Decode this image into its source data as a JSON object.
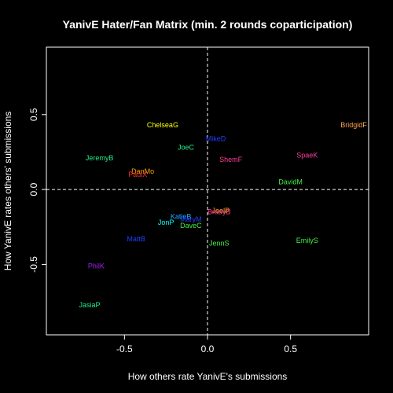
{
  "chart_data": {
    "type": "scatter",
    "title": "YanivE Hater/Fan Matrix (min. 2 rounds coparticipation)",
    "xlabel": "How others rate YanivE's submissions",
    "ylabel": "How YanivE rates others' submissions",
    "xlim": [
      -0.97,
      0.97
    ],
    "ylim": [
      -0.97,
      0.95
    ],
    "x_ticks": [
      -0.5,
      0.0,
      0.5
    ],
    "x_tick_labels": [
      "-0.5",
      "0.0",
      "0.5"
    ],
    "y_ticks": [
      -0.5,
      0.0,
      0.5
    ],
    "y_tick_labels": [
      "-0.5",
      "0.0",
      "0.5"
    ],
    "reference_lines": {
      "x": 0,
      "y": 0,
      "style": "dashed",
      "color": "#ffffff"
    },
    "background": "#000000",
    "points": [
      {
        "name": "BridgidF",
        "x": 0.88,
        "y": 0.43,
        "color": "#ffa54f"
      },
      {
        "name": "ChelseaG",
        "x": -0.27,
        "y": 0.43,
        "color": "#ffff00"
      },
      {
        "name": "MikeD",
        "x": 0.05,
        "y": 0.34,
        "color": "#1e3fff"
      },
      {
        "name": "JoeC",
        "x": -0.13,
        "y": 0.28,
        "color": "#22ee88"
      },
      {
        "name": "SpaeK",
        "x": 0.6,
        "y": 0.23,
        "color": "#ff3fa0"
      },
      {
        "name": "JeremyB",
        "x": -0.65,
        "y": 0.21,
        "color": "#22ee88"
      },
      {
        "name": "ShemF",
        "x": 0.14,
        "y": 0.2,
        "color": "#ff3fa0"
      },
      {
        "name": "DanMo",
        "x": -0.39,
        "y": 0.12,
        "color": "#ffa500"
      },
      {
        "name": "PaulX",
        "x": -0.42,
        "y": 0.1,
        "color": "#ff3030"
      },
      {
        "name": "DavidM",
        "x": 0.5,
        "y": 0.05,
        "color": "#44ee44"
      },
      {
        "name": "JoelP",
        "x": 0.08,
        "y": -0.14,
        "color": "#ffa500"
      },
      {
        "name": "BradyB",
        "x": 0.07,
        "y": -0.15,
        "color": "#ff3fa0"
      },
      {
        "name": "KatieB",
        "x": -0.16,
        "y": -0.18,
        "color": "#22aaff"
      },
      {
        "name": "MaryM",
        "x": -0.1,
        "y": -0.2,
        "color": "#1e3fff"
      },
      {
        "name": "JonP",
        "x": -0.25,
        "y": -0.22,
        "color": "#00ffff"
      },
      {
        "name": "DaveC",
        "x": -0.1,
        "y": -0.24,
        "color": "#44ee44"
      },
      {
        "name": "MattB",
        "x": -0.43,
        "y": -0.33,
        "color": "#1e3fff"
      },
      {
        "name": "EmilyS",
        "x": 0.6,
        "y": -0.34,
        "color": "#44ee44"
      },
      {
        "name": "JennS",
        "x": 0.07,
        "y": -0.36,
        "color": "#44ee44"
      },
      {
        "name": "PhilK",
        "x": -0.67,
        "y": -0.51,
        "color": "#a020f0"
      },
      {
        "name": "JasiaP",
        "x": -0.71,
        "y": -0.77,
        "color": "#22ee88"
      }
    ]
  }
}
